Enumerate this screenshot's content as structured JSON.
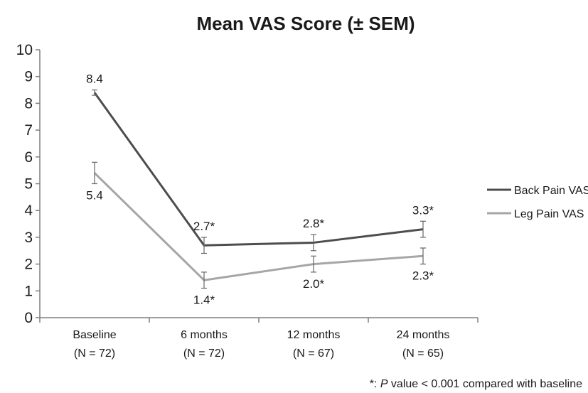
{
  "chart_data": {
    "type": "line",
    "title": "Mean VAS Score (± SEM)",
    "xlabel": "",
    "ylabel": "",
    "ylim": [
      0,
      10
    ],
    "yticks": [
      "0",
      "1",
      "2",
      "3",
      "4",
      "5",
      "6",
      "7",
      "8",
      "9",
      "10"
    ],
    "grid": false,
    "legend_position": "right",
    "categories": [
      {
        "line1": "Baseline",
        "line2": "(N = 72)"
      },
      {
        "line1": "6 months",
        "line2": "(N = 72)"
      },
      {
        "line1": "12 months",
        "line2": "(N = 67)"
      },
      {
        "line1": "24 months",
        "line2": "(N = 65)"
      }
    ],
    "series": [
      {
        "name": "Back Pain VAS",
        "color": "#4d4d4d",
        "values": [
          8.4,
          2.7,
          2.8,
          3.3
        ],
        "sem": [
          0.1,
          0.3,
          0.3,
          0.3
        ],
        "labels": [
          "8.4",
          "2.7*",
          "2.8*",
          "3.3*"
        ],
        "label_side": [
          "above",
          "above",
          "above",
          "above"
        ]
      },
      {
        "name": "Leg Pain VAS",
        "color": "#a6a6a6",
        "values": [
          5.4,
          1.4,
          2.0,
          2.3
        ],
        "sem": [
          0.4,
          0.3,
          0.3,
          0.3
        ],
        "labels": [
          "5.4",
          "1.4*",
          "2.0*",
          "2.3*"
        ],
        "label_side": [
          "below",
          "below",
          "below",
          "below"
        ]
      }
    ],
    "footnote": {
      "prefix": "*: ",
      "italic": "P",
      "suffix": " value < 0.001 compared with baseline"
    }
  }
}
